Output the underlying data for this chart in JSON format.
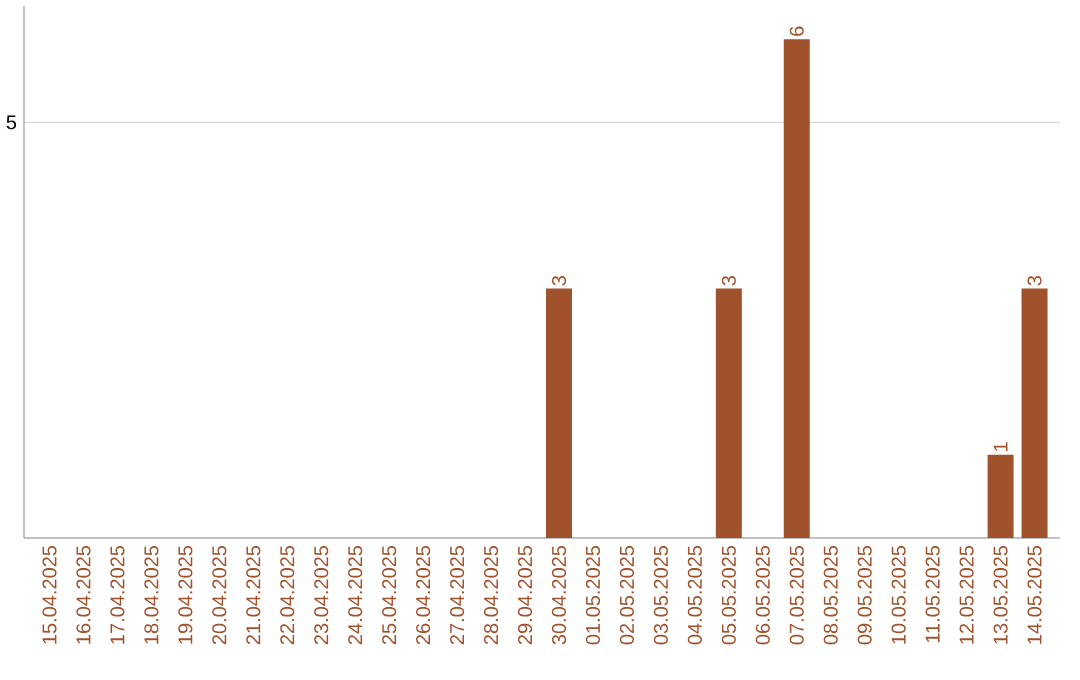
{
  "chart_data": {
    "type": "bar",
    "categories": [
      "15.04.2025",
      "16.04.2025",
      "17.04.2025",
      "18.04.2025",
      "19.04.2025",
      "20.04.2025",
      "21.04.2025",
      "22.04.2025",
      "23.04.2025",
      "24.04.2025",
      "25.04.2025",
      "26.04.2025",
      "27.04.2025",
      "28.04.2025",
      "29.04.2025",
      "30.04.2025",
      "01.05.2025",
      "02.05.2025",
      "03.05.2025",
      "04.05.2025",
      "05.05.2025",
      "06.05.2025",
      "07.05.2025",
      "08.05.2025",
      "09.05.2025",
      "10.05.2025",
      "11.05.2025",
      "12.05.2025",
      "13.05.2025",
      "14.05.2025"
    ],
    "values": [
      null,
      null,
      null,
      null,
      null,
      null,
      null,
      null,
      null,
      null,
      null,
      null,
      null,
      null,
      null,
      3,
      null,
      null,
      null,
      null,
      3,
      null,
      6,
      null,
      null,
      null,
      null,
      null,
      1,
      3
    ],
    "data_labels": true,
    "color": "#a0522d",
    "ylim": [
      0,
      6.4
    ],
    "yticks": [
      5
    ],
    "grid": "y"
  }
}
